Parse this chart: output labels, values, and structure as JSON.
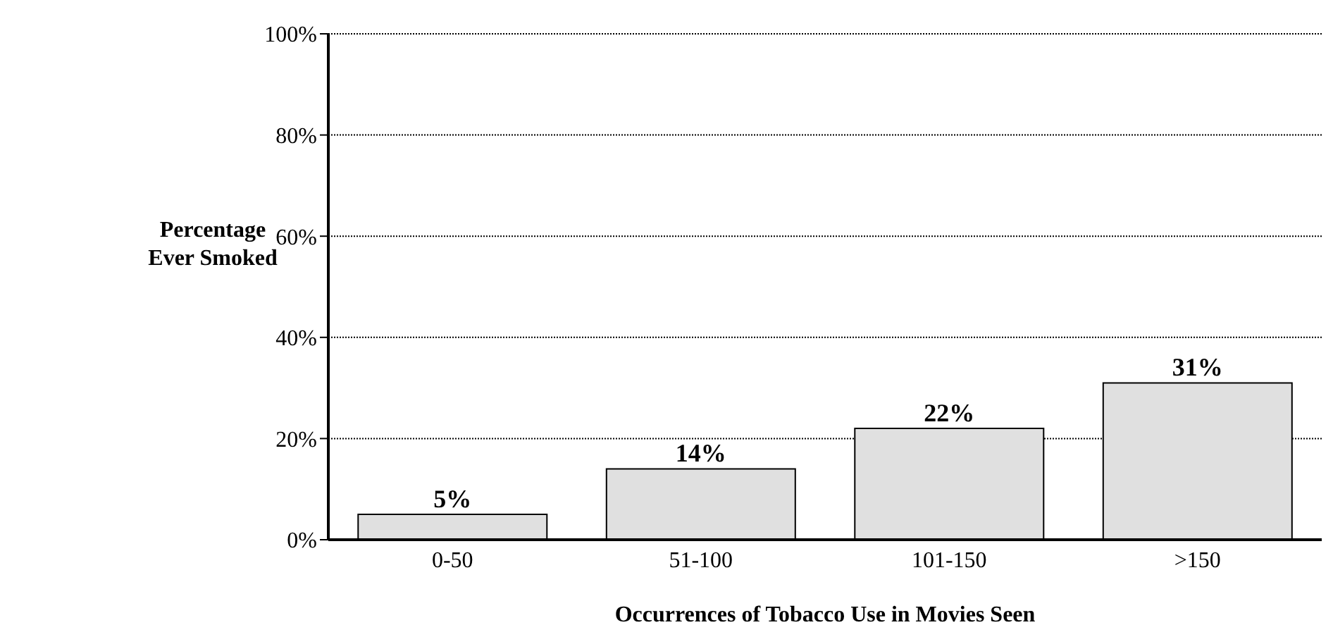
{
  "chart_data": {
    "type": "bar",
    "xlabel": "Occurrences of Tobacco Use in Movies Seen",
    "ylabel": "Percentage Ever Smoked",
    "categories": [
      "0-50",
      "51-100",
      "101-150",
      ">150"
    ],
    "values": [
      5,
      14,
      22,
      31
    ],
    "value_labels": [
      "5%",
      "14%",
      "22%",
      "31%"
    ],
    "color": "#e0e0e0",
    "ylim": [
      0,
      100
    ],
    "yticks": [
      {
        "value": 0,
        "label": "0%"
      },
      {
        "value": 20,
        "label": "20%"
      },
      {
        "value": 40,
        "label": "40%"
      },
      {
        "value": 60,
        "label": "60%"
      },
      {
        "value": 80,
        "label": "80%"
      },
      {
        "value": 100,
        "label": "100%"
      }
    ],
    "grid": "y"
  }
}
